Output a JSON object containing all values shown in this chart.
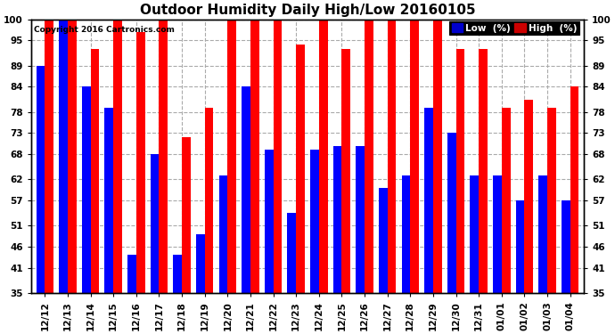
{
  "title": "Outdoor Humidity Daily High/Low 20160105",
  "copyright": "Copyright 2016 Cartronics.com",
  "dates": [
    "12/12",
    "12/13",
    "12/14",
    "12/15",
    "12/16",
    "12/17",
    "12/18",
    "12/19",
    "12/20",
    "12/21",
    "12/22",
    "12/23",
    "12/24",
    "12/25",
    "12/26",
    "12/27",
    "12/28",
    "12/29",
    "12/30",
    "12/31",
    "01/01",
    "01/02",
    "01/03",
    "01/04"
  ],
  "low": [
    89,
    100,
    84,
    79,
    44,
    68,
    44,
    49,
    63,
    84,
    69,
    54,
    69,
    70,
    70,
    60,
    63,
    79,
    73,
    63,
    63,
    57,
    63,
    57
  ],
  "high": [
    100,
    100,
    93,
    100,
    97,
    100,
    72,
    79,
    100,
    100,
    100,
    94,
    100,
    93,
    100,
    100,
    100,
    100,
    93,
    93,
    79,
    81,
    79,
    84
  ],
  "low_color": "#0000ff",
  "high_color": "#ff0000",
  "bg_color": "#ffffff",
  "grid_color": "#aaaaaa",
  "ymin": 35,
  "ymax": 100,
  "yticks": [
    35,
    41,
    46,
    51,
    57,
    62,
    68,
    73,
    78,
    84,
    89,
    95,
    100
  ],
  "legend_low_label": "Low  (%)",
  "legend_high_label": "High  (%)",
  "legend_low_bg": "#0000cc",
  "legend_high_bg": "#cc0000",
  "legend_text_color": "#ffffff",
  "title_fontsize": 11,
  "tick_fontsize": 7.5,
  "bar_width": 0.38
}
